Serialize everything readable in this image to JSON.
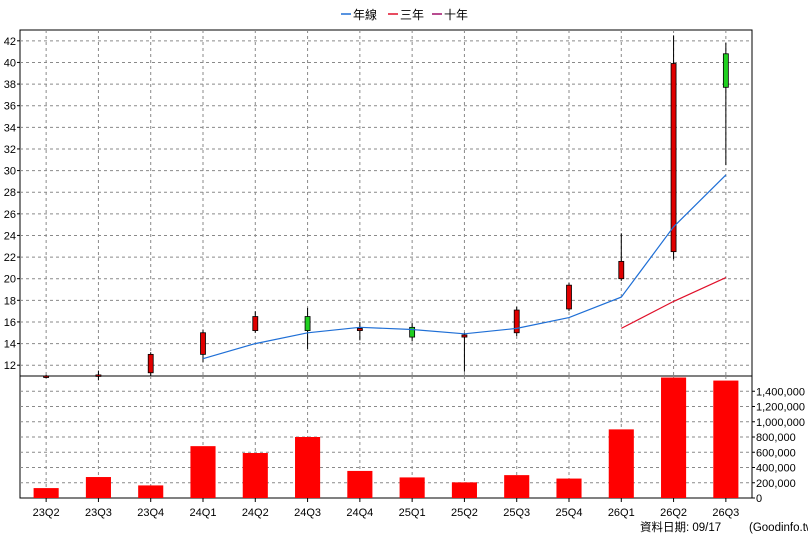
{
  "chart_data": {
    "type": "candlestick",
    "categories": [
      "23Q2",
      "23Q3",
      "23Q4",
      "24Q1",
      "24Q2",
      "24Q3",
      "24Q4",
      "25Q1",
      "25Q2",
      "25Q3",
      "25Q4",
      "26Q1",
      "26Q2",
      "26Q3"
    ],
    "legend": [
      {
        "name": "年線",
        "color": "#1f6fd6"
      },
      {
        "name": "三年",
        "color": "#e0102a"
      },
      {
        "name": "十年",
        "color": "#a0106a"
      }
    ],
    "price_axis": {
      "min": 11,
      "max": 43,
      "ticks": [
        12,
        14,
        16,
        18,
        20,
        22,
        24,
        26,
        28,
        30,
        32,
        34,
        36,
        38,
        40,
        42
      ]
    },
    "volume_axis": {
      "min": 0,
      "max": 1600000,
      "ticks": [
        0,
        200000,
        400000,
        600000,
        800000,
        1000000,
        1200000,
        1400000
      ],
      "tick_labels": [
        "0",
        "200,000",
        "400,000",
        "600,000",
        "800,000",
        "1,000,000",
        "1,200,000",
        "1,400,000"
      ]
    },
    "candles": [
      {
        "open": 11.0,
        "high": 11.1,
        "low": 10.8,
        "close": 11.0
      },
      {
        "open": 11.0,
        "high": 11.5,
        "low": 10.6,
        "close": 11.1
      },
      {
        "open": 11.3,
        "high": 13.2,
        "low": 11.0,
        "close": 13.0
      },
      {
        "open": 13.0,
        "high": 15.3,
        "low": 12.3,
        "close": 15.0
      },
      {
        "open": 15.2,
        "high": 17.0,
        "low": 15.0,
        "close": 16.5
      },
      {
        "open": 16.5,
        "high": 17.3,
        "low": 13.5,
        "close": 15.2
      },
      {
        "open": 15.2,
        "high": 16.0,
        "low": 14.3,
        "close": 15.4
      },
      {
        "open": 15.5,
        "high": 15.9,
        "low": 14.2,
        "close": 14.6
      },
      {
        "open": 14.6,
        "high": 15.0,
        "low": 11.4,
        "close": 14.8
      },
      {
        "open": 15.0,
        "high": 17.4,
        "low": 14.7,
        "close": 17.1
      },
      {
        "open": 17.2,
        "high": 19.6,
        "low": 17.0,
        "close": 19.4
      },
      {
        "open": 20.0,
        "high": 24.2,
        "low": 19.8,
        "close": 21.6
      },
      {
        "open": 22.5,
        "high": 42.5,
        "low": 21.8,
        "close": 39.9
      },
      {
        "open": 40.8,
        "high": 41.8,
        "low": 30.5,
        "close": 37.7
      }
    ],
    "series": [
      {
        "name": "年線",
        "color": "#1f6fd6",
        "values": [
          null,
          null,
          null,
          12.6,
          14.0,
          15.0,
          15.5,
          15.3,
          14.9,
          15.4,
          16.4,
          18.3,
          24.8,
          29.6
        ]
      },
      {
        "name": "三年",
        "color": "#e0102a",
        "values": [
          null,
          null,
          null,
          null,
          null,
          null,
          null,
          null,
          null,
          null,
          null,
          15.4,
          17.9,
          20.1
        ]
      }
    ],
    "volume": [
      130000,
      275000,
      165000,
      680000,
      590000,
      800000,
      355000,
      270000,
      205000,
      300000,
      255000,
      900000,
      1580000,
      1540000
    ]
  },
  "footer": {
    "date_label": "資料日期: 09/17",
    "source": "(Goodinfo.tw)"
  }
}
